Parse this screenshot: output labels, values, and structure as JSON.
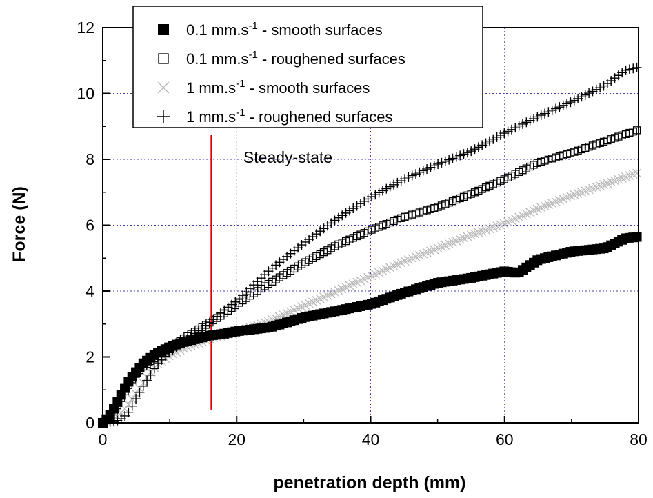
{
  "chart_data": {
    "type": "scatter",
    "xlabel": "penetration depth (mm)",
    "ylabel": "Force (N)",
    "xlim": [
      0,
      80
    ],
    "ylim": [
      0,
      12
    ],
    "xticks": [
      "0",
      "20",
      "40",
      "60",
      "80"
    ],
    "yticks": [
      "0",
      "2",
      "4",
      "6",
      "8",
      "10",
      "12"
    ],
    "grid": true,
    "legend_position": "top-left",
    "series": [
      {
        "name": "0.1 mm.s⁻¹ - smooth surfaces",
        "legend_main": "0.1 mm.s",
        "legend_sup": "-1",
        "legend_tail": " - smooth surfaces",
        "marker": "filled-square",
        "color": "#000000",
        "x": [
          0,
          1,
          2,
          3,
          4,
          5,
          6,
          7,
          8,
          10,
          12,
          14,
          16,
          18,
          20,
          25,
          30,
          35,
          40,
          45,
          50,
          55,
          60,
          62,
          65,
          70,
          75,
          78,
          80
        ],
        "y": [
          0,
          0.2,
          0.55,
          0.95,
          1.3,
          1.55,
          1.8,
          1.95,
          2.1,
          2.3,
          2.45,
          2.55,
          2.65,
          2.7,
          2.78,
          2.9,
          3.2,
          3.4,
          3.6,
          3.95,
          4.25,
          4.4,
          4.6,
          4.55,
          4.95,
          5.2,
          5.3,
          5.6,
          5.65
        ]
      },
      {
        "name": "0.1 mm.s⁻¹ - roughened surfaces",
        "legend_main": "0.1 mm.s",
        "legend_sup": "-1",
        "legend_tail": " - roughened surfaces",
        "marker": "open-square",
        "color": "#000000",
        "x": [
          0,
          1,
          2,
          3,
          4,
          5,
          6,
          7,
          8,
          10,
          12,
          14,
          16,
          18,
          20,
          25,
          30,
          35,
          40,
          45,
          50,
          55,
          60,
          65,
          70,
          75,
          80
        ],
        "y": [
          0,
          0.15,
          0.45,
          0.85,
          1.2,
          1.5,
          1.7,
          1.85,
          2.0,
          2.25,
          2.55,
          2.8,
          3.05,
          3.3,
          3.6,
          4.25,
          4.85,
          5.4,
          5.85,
          6.25,
          6.55,
          6.95,
          7.4,
          7.9,
          8.2,
          8.55,
          8.9
        ]
      },
      {
        "name": "1 mm.s⁻¹ - smooth surfaces",
        "legend_main": "1 mm.s",
        "legend_sup": "-1",
        "legend_tail": " - smooth surfaces",
        "marker": "cross-x",
        "color": "#bbbbbb",
        "x": [
          0,
          1,
          2,
          3,
          4,
          5,
          6,
          7,
          8,
          10,
          12,
          14,
          16,
          18,
          20,
          25,
          30,
          35,
          40,
          45,
          50,
          55,
          60,
          65,
          70,
          75,
          80
        ],
        "y": [
          0,
          0.05,
          0.15,
          0.35,
          0.6,
          0.9,
          1.2,
          1.5,
          1.75,
          2.05,
          2.25,
          2.4,
          2.55,
          2.65,
          2.75,
          3.1,
          3.55,
          4.0,
          4.45,
          4.9,
          5.3,
          5.7,
          6.05,
          6.5,
          6.9,
          7.25,
          7.6
        ]
      },
      {
        "name": "1 mm.s⁻¹ - roughened surfaces",
        "legend_main": "1 mm.s",
        "legend_sup": "-1",
        "legend_tail": " - roughened surfaces",
        "marker": "plus",
        "color": "#000000",
        "x": [
          0,
          1,
          2,
          3,
          4,
          5,
          6,
          7,
          8,
          10,
          12,
          14,
          16,
          18,
          20,
          25,
          30,
          35,
          40,
          45,
          50,
          55,
          60,
          65,
          70,
          75,
          78,
          80
        ],
        "y": [
          0,
          0.02,
          0.05,
          0.15,
          0.35,
          0.75,
          1.1,
          1.4,
          1.75,
          2.15,
          2.45,
          2.75,
          3.05,
          3.4,
          3.7,
          4.65,
          5.45,
          6.2,
          6.85,
          7.4,
          7.85,
          8.25,
          8.8,
          9.3,
          9.75,
          10.25,
          10.7,
          10.8
        ]
      }
    ],
    "annotations": [
      {
        "text": "Steady-state",
        "x": 21,
        "y": 7.9
      }
    ],
    "reference_line": {
      "x": 16.2,
      "y_from": 0.4,
      "y_to": 8.75,
      "color": "#dd0000"
    }
  }
}
